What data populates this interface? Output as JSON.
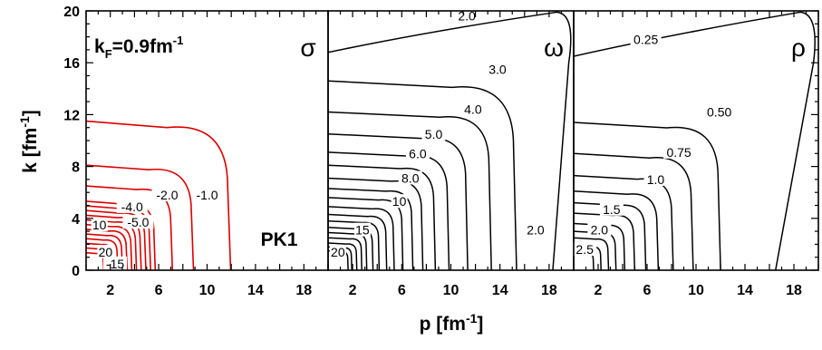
{
  "chart_data": {
    "type": "contour",
    "layout": "three panels sharing y axis",
    "xlabel": "p [fm",
    "xlabel_sup": "-1",
    "xlabel_end": "]",
    "ylabel": "k [fm",
    "ylabel_sup": "-1",
    "ylabel_end": "]",
    "xlim": [
      0,
      20
    ],
    "ylim": [
      0,
      20
    ],
    "x_ticks": [
      "2",
      "6",
      "10",
      "14",
      "18"
    ],
    "y_ticks": [
      "0",
      "4",
      "8",
      "12",
      "16",
      "20"
    ],
    "annotation": {
      "main": "k",
      "sub": "F",
      "mid": "=0.9fm",
      "sup": "-1"
    },
    "model_label": "PK1",
    "panels": [
      {
        "name": "σ",
        "color": "#dd0000",
        "contour_labels": [
          {
            "text": "-1.0",
            "x": 10.0,
            "y": 5.8
          },
          {
            "text": "-2.0",
            "x": 6.7,
            "y": 5.8
          },
          {
            "text": "-4.0",
            "x": 3.8,
            "y": 4.9
          },
          {
            "text": "-5.0",
            "x": 4.3,
            "y": 3.7
          },
          {
            "text": "10",
            "x": 1.1,
            "y": 3.5
          },
          {
            "text": "20",
            "x": 1.6,
            "y": 1.4
          },
          {
            "text": "-15",
            "x": 2.4,
            "y": 0.5
          }
        ]
      },
      {
        "name": "ω",
        "color": "#000000",
        "contour_labels": [
          {
            "text": "2.0",
            "x": 11.3,
            "y": 19.6
          },
          {
            "text": "3.0",
            "x": 13.8,
            "y": 15.5
          },
          {
            "text": "4.0",
            "x": 11.8,
            "y": 12.4
          },
          {
            "text": "5.0",
            "x": 8.6,
            "y": 10.5
          },
          {
            "text": "6.0",
            "x": 7.3,
            "y": 9.0
          },
          {
            "text": "8.0",
            "x": 6.7,
            "y": 7.1
          },
          {
            "text": "10",
            "x": 5.8,
            "y": 5.3
          },
          {
            "text": "15",
            "x": 2.8,
            "y": 3.1
          },
          {
            "text": "20",
            "x": 0.8,
            "y": 1.4
          },
          {
            "text": "2.0",
            "x": 16.9,
            "y": 3.1
          }
        ]
      },
      {
        "name": "ρ",
        "color": "#000000",
        "contour_labels": [
          {
            "text": "0.25",
            "x": 5.9,
            "y": 17.8
          },
          {
            "text": "0.50",
            "x": 11.9,
            "y": 12.2
          },
          {
            "text": "0.75",
            "x": 8.6,
            "y": 9.1
          },
          {
            "text": "1.0",
            "x": 6.7,
            "y": 7.0
          },
          {
            "text": "1.5",
            "x": 3.1,
            "y": 4.7
          },
          {
            "text": "2.0",
            "x": 2.1,
            "y": 3.1
          },
          {
            "text": "2.5",
            "x": 0.9,
            "y": 1.6
          }
        ]
      }
    ]
  }
}
